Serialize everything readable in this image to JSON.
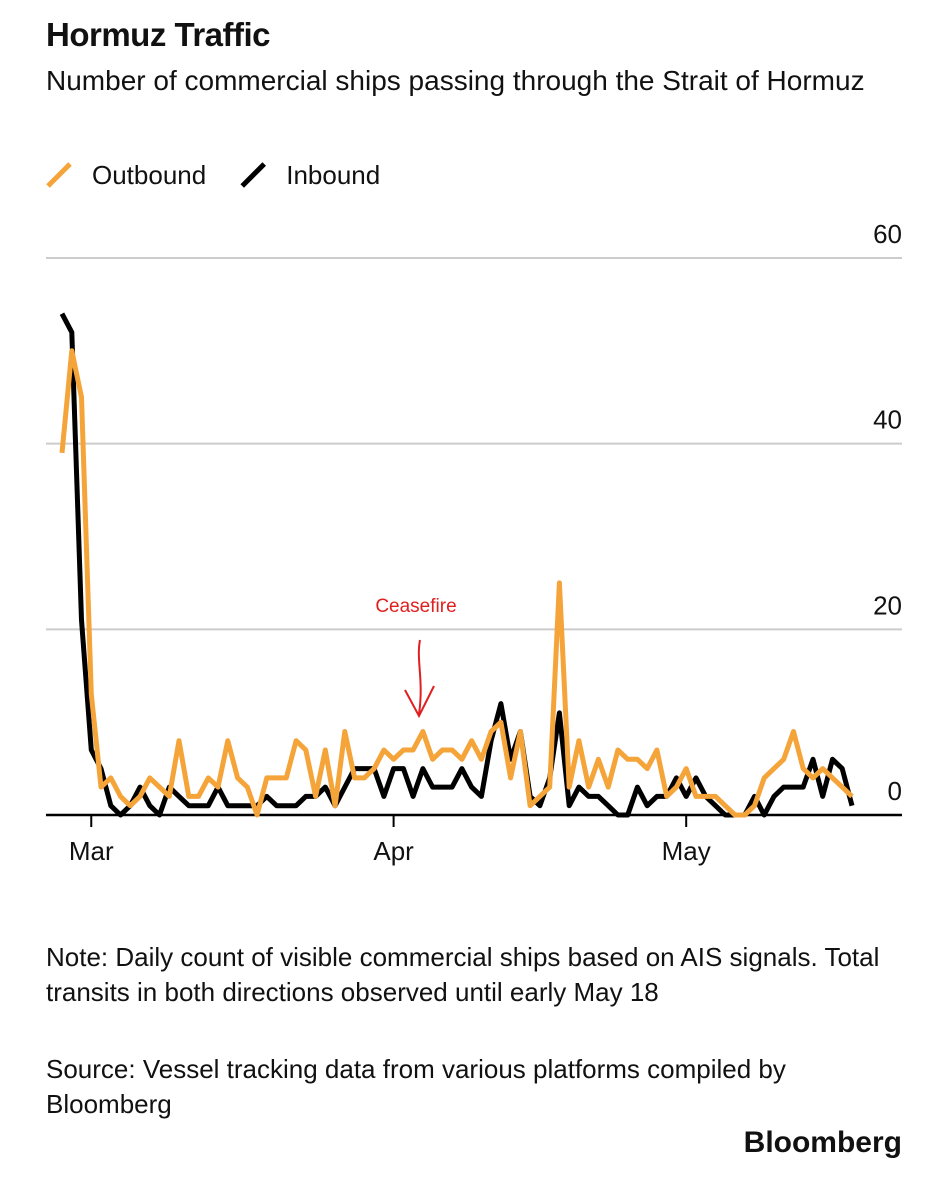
{
  "chart_data": {
    "type": "line",
    "title": "Hormuz Traffic",
    "subtitle": "Number of commercial ships passing through the Strait of Hormuz",
    "annotation": "Ceasefire",
    "note": "Note: Daily count of visible commercial ships based on AIS signals. Total transits in both directions observed until early May 18",
    "source": "Source: Vessel tracking data from various platforms compiled by Bloomberg",
    "brand": "Bloomberg",
    "categories": [
      null,
      null,
      null,
      "Mar",
      null,
      null,
      null,
      null,
      null,
      null,
      null,
      null,
      null,
      null,
      null,
      null,
      null,
      null,
      null,
      null,
      null,
      null,
      null,
      null,
      null,
      null,
      null,
      null,
      null,
      null,
      null,
      null,
      null,
      null,
      "Apr",
      null,
      null,
      null,
      null,
      null,
      null,
      null,
      null,
      null,
      null,
      null,
      null,
      null,
      null,
      null,
      null,
      null,
      null,
      null,
      null,
      null,
      null,
      null,
      null,
      null,
      null,
      null,
      null,
      null,
      "May",
      null,
      null,
      null,
      null,
      null,
      null,
      null,
      null,
      null,
      null,
      null,
      null,
      null,
      null,
      null,
      null,
      null
    ],
    "series": [
      {
        "name": "Outbound",
        "color": "#f5a43a",
        "values": [
          39,
          50,
          45,
          13,
          3,
          4,
          2,
          1,
          2,
          4,
          3,
          2,
          8,
          2,
          2,
          4,
          3,
          8,
          4,
          3,
          0,
          4,
          4,
          4,
          8,
          7,
          2,
          7,
          1,
          9,
          4,
          4,
          5,
          7,
          6,
          7,
          7,
          9,
          6,
          7,
          7,
          6,
          8,
          6,
          9,
          10,
          4,
          9,
          1,
          2,
          3,
          25,
          3,
          8,
          3,
          6,
          3,
          7,
          6,
          6,
          5,
          7,
          2,
          3,
          5,
          2,
          2,
          2,
          1,
          0,
          0,
          1,
          4,
          5,
          6,
          9,
          5,
          4,
          5,
          4,
          3,
          2
        ]
      },
      {
        "name": "Inbound",
        "color": "#000000",
        "values": [
          54,
          52,
          21,
          7,
          5,
          1,
          0,
          1,
          3,
          1,
          0,
          3,
          2,
          1,
          1,
          1,
          3,
          1,
          1,
          1,
          1,
          2,
          1,
          1,
          1,
          2,
          2,
          3,
          1,
          3,
          5,
          5,
          5,
          2,
          5,
          5,
          2,
          5,
          3,
          3,
          3,
          5,
          3,
          2,
          8,
          12,
          6,
          9,
          2,
          1,
          4,
          11,
          1,
          3,
          2,
          2,
          1,
          0,
          0,
          3,
          1,
          2,
          2,
          4,
          2,
          4,
          2,
          1,
          0,
          0,
          0,
          2,
          0,
          2,
          3,
          3,
          3,
          6,
          2,
          6,
          5,
          1
        ]
      }
    ],
    "ylim": [
      0,
      60
    ],
    "yticks": [
      0,
      20,
      40,
      60
    ],
    "grid": true
  }
}
